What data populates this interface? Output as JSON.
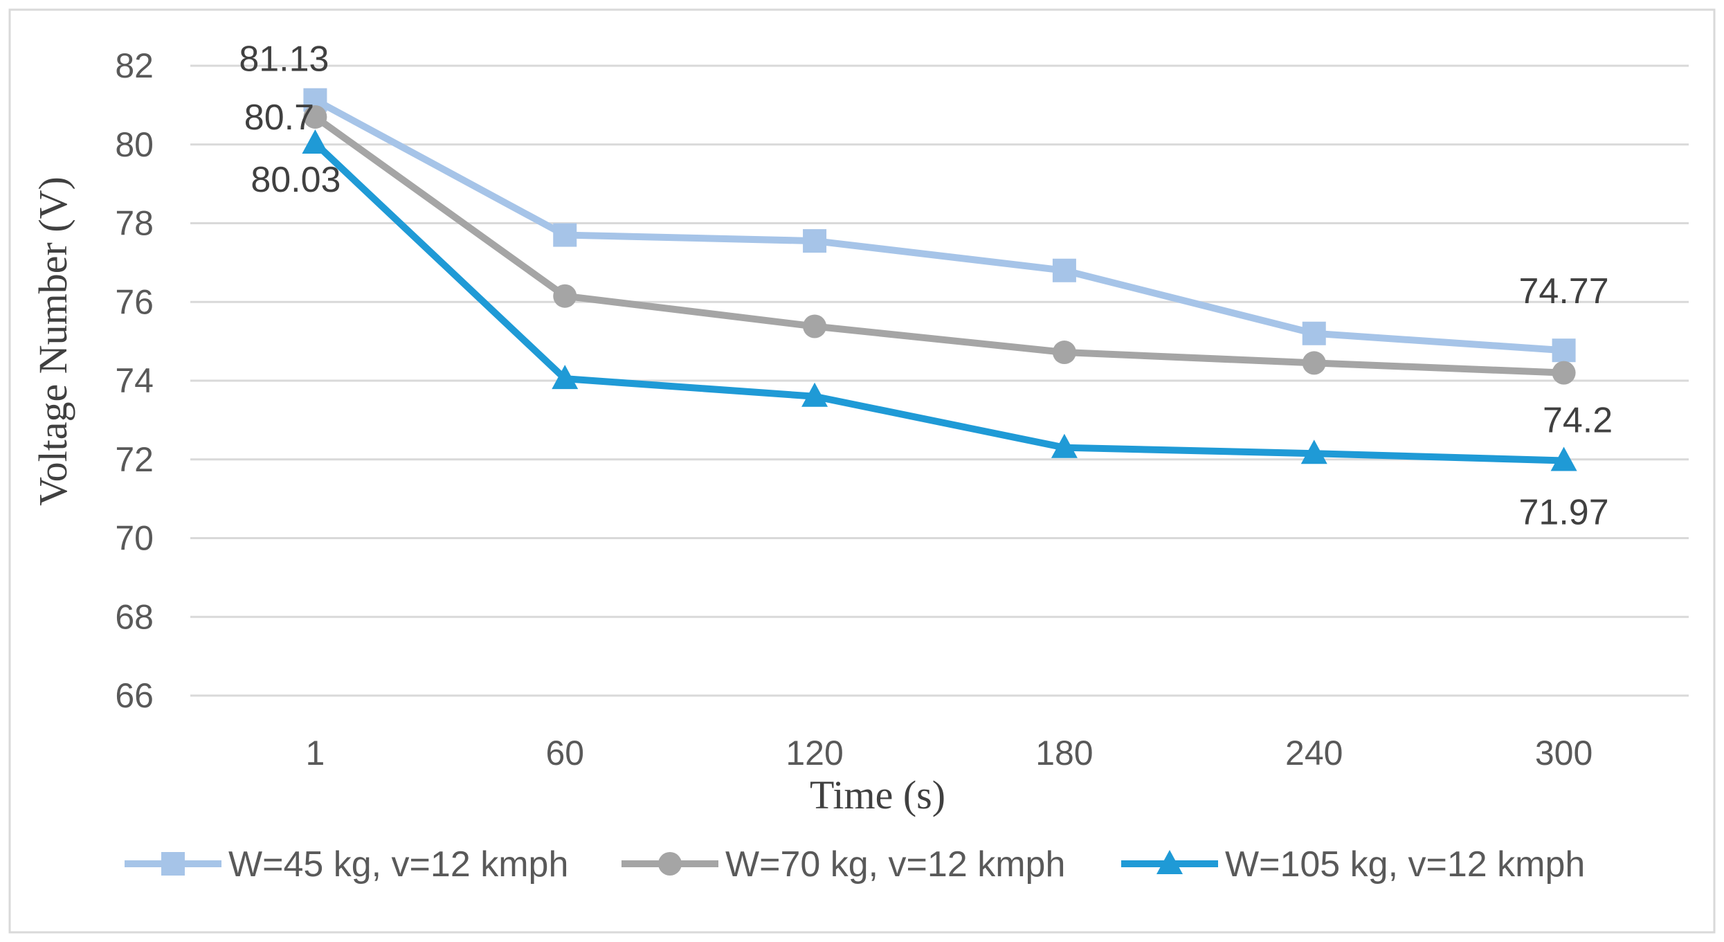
{
  "chart_data": {
    "type": "line",
    "title": "",
    "xlabel": "Time (s)",
    "ylabel": "Voltage Number (V)",
    "categories": [
      "1",
      "60",
      "120",
      "180",
      "240",
      "300"
    ],
    "ylim": [
      66,
      82
    ],
    "yticks": [
      66,
      68,
      70,
      72,
      74,
      76,
      78,
      80,
      82
    ],
    "ytick_labels": [
      "66",
      "68",
      "70",
      "72",
      "74",
      "76",
      "78",
      "80",
      "82"
    ],
    "grid": true,
    "legend_position": "bottom",
    "series": [
      {
        "name": "W=45 kg, v=12 kmph",
        "marker": "square",
        "color": "#a6c4e8",
        "values": [
          81.13,
          77.7,
          77.55,
          76.8,
          75.2,
          74.77
        ],
        "labels": [
          {
            "index": 0,
            "text": "81.13"
          },
          {
            "index": 5,
            "text": "74.77"
          }
        ]
      },
      {
        "name": "W=70 kg, v=12 kmph",
        "marker": "circle",
        "color": "#a5a5a5",
        "values": [
          80.7,
          76.15,
          75.38,
          74.72,
          74.45,
          74.2
        ],
        "labels": [
          {
            "index": 0,
            "text": "80.7"
          },
          {
            "index": 5,
            "text": "74.2"
          }
        ]
      },
      {
        "name": "W=105 kg, v=12 kmph",
        "marker": "triangle",
        "color": "#1f9ad6",
        "values": [
          80.03,
          74.05,
          73.6,
          72.3,
          72.15,
          71.97
        ],
        "labels": [
          {
            "index": 0,
            "text": "80.03"
          },
          {
            "index": 5,
            "text": "71.97"
          }
        ]
      }
    ]
  }
}
